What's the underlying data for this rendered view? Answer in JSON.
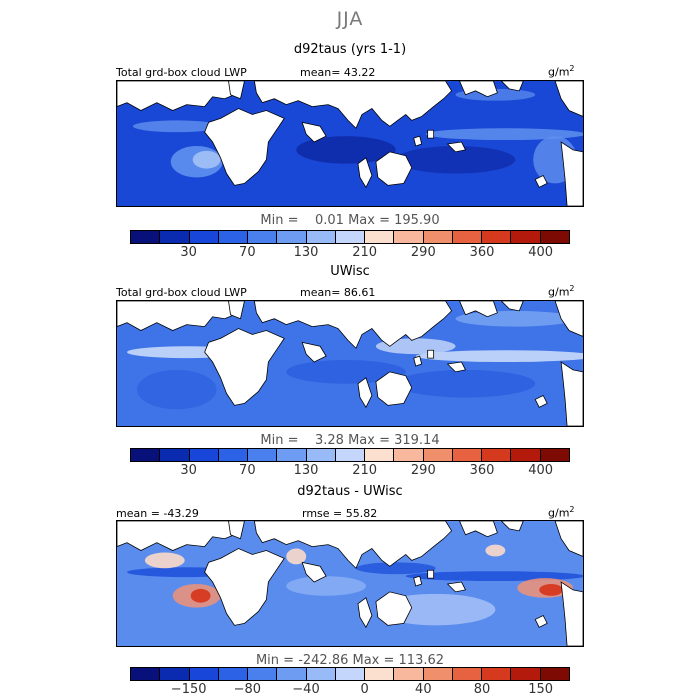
{
  "figure": {
    "season": "JJA"
  },
  "panels": [
    {
      "title": "d92taus (yrs 1-1)",
      "hdr_left": "Total grd-box cloud LWP",
      "hdr_mid": "mean=  43.22",
      "units_base": "g/m",
      "units_exp": "2",
      "minmax": "Min =    0.01 Max = 195.90",
      "cbar_colors": [
        "#08107a",
        "#0a2bb0",
        "#1746d8",
        "#2c62e6",
        "#4a80ee",
        "#6f9cf3",
        "#98baf7",
        "#c4d6fb",
        "#fbe0d0",
        "#f8b89e",
        "#f08f6c",
        "#e66240",
        "#d53a1e",
        "#b41a0c",
        "#7e0a04"
      ],
      "cbar_labels": [
        "30",
        "70",
        "130",
        "210",
        "290",
        "360",
        "400"
      ],
      "map_colors": {
        "bg": "#1a48d6",
        "dark": "#0c249c",
        "light": "#5f90ee",
        "pale": "#a4c2f6"
      }
    },
    {
      "title": "UWisc",
      "hdr_left": "Total grd-box cloud LWP",
      "hdr_mid": "mean=  86.61",
      "units_base": "g/m",
      "units_exp": "2",
      "minmax": "Min =    3.28 Max = 319.14",
      "cbar_colors": [
        "#08107a",
        "#0a2bb0",
        "#1746d8",
        "#2c62e6",
        "#4a80ee",
        "#6f9cf3",
        "#98baf7",
        "#c4d6fb",
        "#fbe0d0",
        "#f8b89e",
        "#f08f6c",
        "#e66240",
        "#d53a1e",
        "#b41a0c",
        "#7e0a04"
      ],
      "cbar_labels": [
        "30",
        "70",
        "130",
        "210",
        "290",
        "360",
        "400"
      ],
      "map_colors": {
        "bg": "#3e74e8",
        "dark": "#1d4fd8",
        "light": "#7aa6f2",
        "pale": "#c9daf9"
      }
    },
    {
      "title": "d92taus - UWisc",
      "hdr_left": "mean = -43.29",
      "hdr_mid": "rmse =  55.82",
      "units_base": "g/m",
      "units_exp": "2",
      "minmax": "Min = -242.86 Max = 113.62",
      "cbar_colors": [
        "#08107a",
        "#0a2bb0",
        "#1746d8",
        "#2c62e6",
        "#4a80ee",
        "#6f9cf3",
        "#98baf7",
        "#c4d6fb",
        "#fbe0d0",
        "#f8b89e",
        "#f08f6c",
        "#e66240",
        "#d53a1e",
        "#b41a0c",
        "#7e0a04"
      ],
      "cbar_labels": [
        "-150",
        "-80",
        "-40",
        "0",
        "40",
        "80",
        "150"
      ],
      "map_colors": {
        "bg": "#5a8cee",
        "dark": "#1f52da",
        "light": "#9dbdf6",
        "pale": "#d8e4fb"
      }
    }
  ]
}
